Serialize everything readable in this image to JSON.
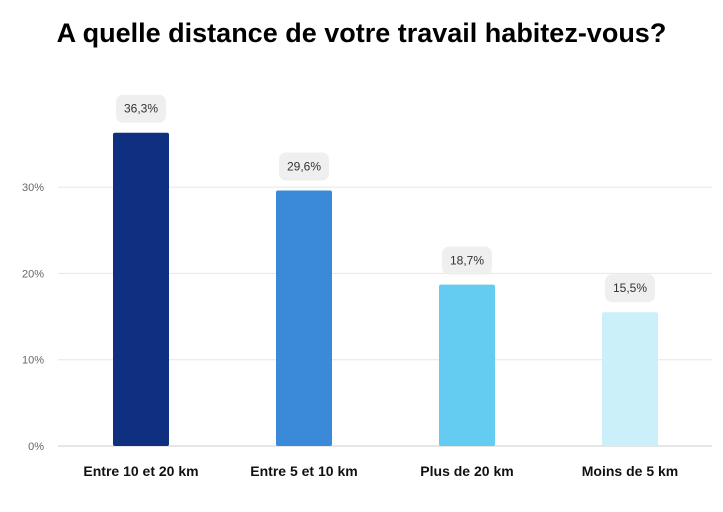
{
  "chart_data": {
    "type": "bar",
    "title": "A quelle distance de votre travail habitez-vous?",
    "categories": [
      "Entre 10 et 20 km",
      "Entre 5 et 10 km",
      "Plus de 20 km",
      "Moins de 5 km"
    ],
    "values": [
      36.3,
      29.6,
      18.7,
      15.5
    ],
    "data_labels": [
      "36,3%",
      "29,6%",
      "18,7%",
      "15,5%"
    ],
    "colors": [
      "#0f2f80",
      "#3a8ad9",
      "#63ccf0",
      "#ccf0fa"
    ],
    "yticks": [
      0,
      10,
      20,
      30
    ],
    "ytick_labels": [
      "0%",
      "10%",
      "20%",
      "30%"
    ],
    "ylim": [
      0,
      40
    ],
    "grid": true,
    "xlabel": "",
    "ylabel": ""
  }
}
